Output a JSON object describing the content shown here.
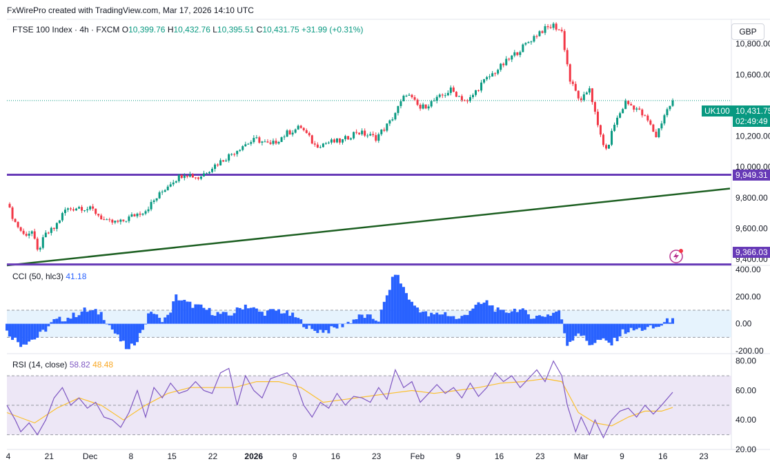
{
  "header": {
    "attribution": "FxWirePro created with TradingView.com, Mar 17, 2026 14:10 UTC"
  },
  "legend": {
    "symbol": "FTSE 100 Index · 4h · FXCM",
    "o_label": "O",
    "o": "10,399.76",
    "h_label": "H",
    "h": "10,432.76",
    "l_label": "L",
    "l": "10,395.51",
    "c_label": "C",
    "c": "10,431.75",
    "change": "+31.99 (+0.31%)"
  },
  "currency": "GBP",
  "price_tag": {
    "ticker": "UK100",
    "price": "10,431.75",
    "countdown": "02:49:49"
  },
  "levels": [
    {
      "value": 9949.31,
      "label": "9,949.31"
    },
    {
      "value": 9366.03,
      "label": "9,366.03"
    }
  ],
  "cci_legend": {
    "name": "CCI (50, hlc3)",
    "value": "41.18"
  },
  "rsi_legend": {
    "name": "RSI (14, close)",
    "value": "58.82",
    "ma_value": "48.48"
  },
  "colors": {
    "up": "#089981",
    "down": "#f23645",
    "level": "#673ab7",
    "trend": "#1b5e20",
    "cci": "#2962ff",
    "rsi": "#7e57c2",
    "rsi_ma": "#fbc02d",
    "band": "#ede7f6"
  },
  "chart_data": [
    {
      "type": "candlestick",
      "title": "FTSE 100 Index · 4h · FXCM",
      "y_ticks": [
        "9,400.00",
        "9,600.00",
        "9,800.00",
        "10,000.00",
        "10,200.00",
        "10,600.00",
        "10,800.00"
      ],
      "ylim": [
        9360,
        10960
      ],
      "x_ticks": [
        "4",
        "21",
        "Dec",
        "8",
        "15",
        "22",
        "2026",
        "9",
        "16",
        "23",
        "Feb",
        "9",
        "16",
        "23",
        "Mar",
        "9",
        "16",
        "23"
      ],
      "close_path": [
        [
          0,
          9760
        ],
        [
          3,
          9640
        ],
        [
          6,
          9560
        ],
        [
          9,
          9580
        ],
        [
          11,
          9450
        ],
        [
          14,
          9560
        ],
        [
          17,
          9600
        ],
        [
          21,
          9720
        ],
        [
          26,
          9740
        ],
        [
          31,
          9720
        ],
        [
          36,
          9640
        ],
        [
          41,
          9640
        ],
        [
          45,
          9680
        ],
        [
          50,
          9720
        ],
        [
          55,
          9820
        ],
        [
          59,
          9900
        ],
        [
          64,
          9960
        ],
        [
          69,
          9930
        ],
        [
          74,
          10000
        ],
        [
          79,
          10060
        ],
        [
          85,
          10140
        ],
        [
          90,
          10180
        ],
        [
          95,
          10140
        ],
        [
          101,
          10220
        ],
        [
          106,
          10260
        ],
        [
          111,
          10140
        ],
        [
          116,
          10160
        ],
        [
          121,
          10170
        ],
        [
          126,
          10230
        ],
        [
          133,
          10190
        ],
        [
          138,
          10290
        ],
        [
          144,
          10480
        ],
        [
          149,
          10380
        ],
        [
          155,
          10440
        ],
        [
          160,
          10500
        ],
        [
          166,
          10420
        ],
        [
          171,
          10540
        ],
        [
          176,
          10620
        ],
        [
          181,
          10700
        ],
        [
          186,
          10780
        ],
        [
          192,
          10880
        ],
        [
          197,
          10920
        ],
        [
          200,
          10880
        ],
        [
          203,
          10560
        ],
        [
          207,
          10420
        ],
        [
          210,
          10520
        ],
        [
          213,
          10260
        ],
        [
          216,
          10100
        ],
        [
          219,
          10280
        ],
        [
          223,
          10420
        ],
        [
          227,
          10380
        ],
        [
          231,
          10300
        ],
        [
          234,
          10200
        ],
        [
          237,
          10340
        ],
        [
          240,
          10431.75
        ]
      ],
      "levels": [
        9949.31,
        9366.03
      ],
      "trendline": [
        [
          0,
          9360
        ],
        [
          240,
          9820
        ]
      ]
    },
    {
      "type": "bar",
      "title": "CCI (50, hlc3)",
      "y_ticks": [
        "400.00",
        "200.00",
        "0.00",
        "-200.00"
      ],
      "ylim": [
        -220,
        430
      ],
      "bands": [
        100,
        -100
      ],
      "path": [
        [
          0,
          -60
        ],
        [
          5,
          -150
        ],
        [
          11,
          -100
        ],
        [
          17,
          20
        ],
        [
          23,
          50
        ],
        [
          28,
          100
        ],
        [
          34,
          80
        ],
        [
          40,
          -100
        ],
        [
          44,
          -200
        ],
        [
          48,
          -80
        ],
        [
          52,
          100
        ],
        [
          55,
          30
        ],
        [
          58,
          50
        ],
        [
          61,
          200
        ],
        [
          65,
          150
        ],
        [
          70,
          120
        ],
        [
          75,
          80
        ],
        [
          80,
          60
        ],
        [
          86,
          140
        ],
        [
          92,
          80
        ],
        [
          98,
          100
        ],
        [
          104,
          50
        ],
        [
          110,
          -50
        ],
        [
          116,
          -50
        ],
        [
          122,
          0
        ],
        [
          128,
          60
        ],
        [
          134,
          30
        ],
        [
          140,
          380
        ],
        [
          146,
          150
        ],
        [
          152,
          60
        ],
        [
          158,
          80
        ],
        [
          163,
          30
        ],
        [
          168,
          120
        ],
        [
          173,
          160
        ],
        [
          178,
          80
        ],
        [
          184,
          110
        ],
        [
          190,
          50
        ],
        [
          196,
          70
        ],
        [
          199,
          100
        ],
        [
          202,
          -150
        ],
        [
          206,
          -60
        ],
        [
          210,
          -150
        ],
        [
          214,
          -120
        ],
        [
          218,
          -150
        ],
        [
          222,
          -60
        ],
        [
          228,
          -40
        ],
        [
          234,
          -30
        ],
        [
          240,
          41.18
        ]
      ]
    },
    {
      "type": "line",
      "title": "RSI (14, close)",
      "y_ticks": [
        "80.00",
        "60.00",
        "40.00",
        "20.00"
      ],
      "ylim": [
        20,
        85
      ],
      "bands": [
        70,
        30
      ],
      "series": [
        {
          "name": "RSI (14, close)",
          "values": [
            [
              0,
              50
            ],
            [
              3,
              40
            ],
            [
              5,
              32
            ],
            [
              8,
              38
            ],
            [
              11,
              30
            ],
            [
              14,
              40
            ],
            [
              17,
              55
            ],
            [
              20,
              62
            ],
            [
              23,
              50
            ],
            [
              26,
              55
            ],
            [
              29,
              48
            ],
            [
              32,
              52
            ],
            [
              35,
              42
            ],
            [
              38,
              40
            ],
            [
              41,
              35
            ],
            [
              44,
              45
            ],
            [
              47,
              60
            ],
            [
              50,
              42
            ],
            [
              53,
              62
            ],
            [
              56,
              55
            ],
            [
              59,
              65
            ],
            [
              62,
              58
            ],
            [
              65,
              60
            ],
            [
              68,
              66
            ],
            [
              71,
              60
            ],
            [
              74,
              58
            ],
            [
              77,
              72
            ],
            [
              80,
              75
            ],
            [
              83,
              50
            ],
            [
              86,
              70
            ],
            [
              89,
              60
            ],
            [
              92,
              55
            ],
            [
              95,
              68
            ],
            [
              98,
              70
            ],
            [
              101,
              72
            ],
            [
              104,
              66
            ],
            [
              107,
              50
            ],
            [
              110,
              42
            ],
            [
              113,
              52
            ],
            [
              116,
              48
            ],
            [
              119,
              58
            ],
            [
              122,
              50
            ],
            [
              125,
              56
            ],
            [
              128,
              55
            ],
            [
              131,
              52
            ],
            [
              134,
              62
            ],
            [
              137,
              54
            ],
            [
              140,
              74
            ],
            [
              143,
              62
            ],
            [
              146,
              66
            ],
            [
              149,
              52
            ],
            [
              152,
              58
            ],
            [
              155,
              64
            ],
            [
              158,
              58
            ],
            [
              161,
              62
            ],
            [
              164,
              55
            ],
            [
              167,
              65
            ],
            [
              170,
              56
            ],
            [
              173,
              62
            ],
            [
              176,
              72
            ],
            [
              179,
              66
            ],
            [
              182,
              70
            ],
            [
              185,
              62
            ],
            [
              188,
              68
            ],
            [
              191,
              74
            ],
            [
              194,
              66
            ],
            [
              197,
              80
            ],
            [
              200,
              70
            ],
            [
              202,
              50
            ],
            [
              205,
              32
            ],
            [
              207,
              42
            ],
            [
              210,
              30
            ],
            [
              212,
              40
            ],
            [
              215,
              28
            ],
            [
              218,
              40
            ],
            [
              221,
              46
            ],
            [
              224,
              48
            ],
            [
              227,
              42
            ],
            [
              230,
              50
            ],
            [
              233,
              44
            ],
            [
              236,
              50
            ],
            [
              240,
              58.82
            ]
          ]
        },
        {
          "name": "RSI-based MA",
          "values": [
            [
              0,
              45
            ],
            [
              10,
              38
            ],
            [
              18,
              48
            ],
            [
              26,
              55
            ],
            [
              34,
              50
            ],
            [
              42,
              40
            ],
            [
              50,
              50
            ],
            [
              58,
              58
            ],
            [
              66,
              62
            ],
            [
              74,
              62
            ],
            [
              82,
              62
            ],
            [
              90,
              66
            ],
            [
              98,
              66
            ],
            [
              106,
              62
            ],
            [
              114,
              52
            ],
            [
              122,
              54
            ],
            [
              130,
              56
            ],
            [
              138,
              58
            ],
            [
              146,
              60
            ],
            [
              154,
              58
            ],
            [
              162,
              60
            ],
            [
              170,
              62
            ],
            [
              178,
              65
            ],
            [
              186,
              66
            ],
            [
              194,
              68
            ],
            [
              200,
              66
            ],
            [
              206,
              45
            ],
            [
              212,
              38
            ],
            [
              218,
              36
            ],
            [
              224,
              42
            ],
            [
              230,
              46
            ],
            [
              236,
              46
            ],
            [
              240,
              48.48
            ]
          ]
        }
      ]
    }
  ]
}
